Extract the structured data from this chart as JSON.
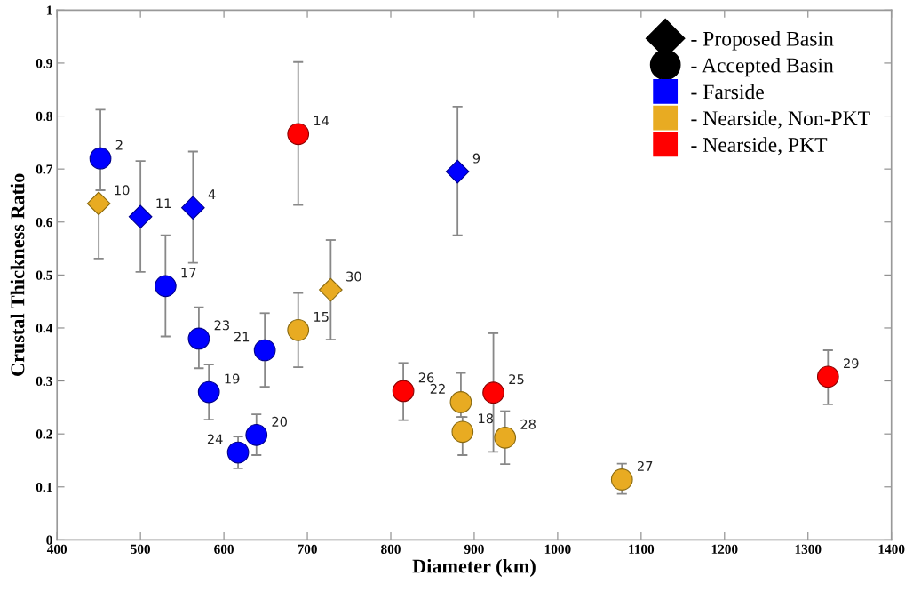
{
  "chart_data": {
    "type": "scatter",
    "xlabel": "Diameter (km)",
    "ylabel": "Crustal Thickness Ratio",
    "xlim": [
      400,
      1400
    ],
    "xticks": [
      400,
      500,
      600,
      700,
      800,
      900,
      1000,
      1100,
      1200,
      1300,
      1400
    ],
    "ylim": [
      0,
      1
    ],
    "yticks": [
      0,
      0.1,
      0.2,
      0.3,
      0.4,
      0.5,
      0.6,
      0.7,
      0.8,
      0.9,
      1
    ],
    "grid": false,
    "legend": "top right",
    "series": [
      {
        "name": "- Proposed Basin",
        "color": "#000000",
        "marker": "diamond"
      },
      {
        "name": "- Accepted Basin",
        "color": "#000000",
        "marker": "circle"
      },
      {
        "name": "- Farside",
        "color": "#0000ff",
        "marker": "circle",
        "x": [
          452,
          530,
          570,
          582,
          617,
          639,
          649
        ],
        "values": [
          0.72,
          0.479,
          0.38,
          0.279,
          0.165,
          0.198,
          0.358
        ],
        "errors": [
          [
            0.66,
            0.812
          ],
          [
            0.384,
            0.575
          ],
          [
            0.324,
            0.439
          ],
          [
            0.227,
            0.331
          ],
          [
            0.135,
            0.195
          ],
          [
            0.16,
            0.237
          ],
          [
            0.289,
            0.428
          ]
        ]
      },
      {
        "name": "- Nearside, Non-PKT",
        "color": "#e8ab22",
        "marker": "circle",
        "x": [
          689,
          884,
          886,
          937,
          1077
        ],
        "values": [
          0.396,
          0.26,
          0.204,
          0.193,
          0.114
        ],
        "errors": [
          [
            0.326,
            0.466
          ],
          [
            0.232,
            0.315
          ],
          [
            0.16,
            0.232
          ],
          [
            0.143,
            0.243
          ],
          [
            0.087,
            0.144
          ]
        ]
      },
      {
        "name": "- Nearside, PKT",
        "color": "#ff0000",
        "marker": "circle",
        "x": [
          689,
          815,
          923,
          1324
        ],
        "values": [
          0.766,
          0.281,
          0.278,
          0.308
        ],
        "errors": [
          [
            0.632,
            0.902
          ],
          [
            0.226,
            0.334
          ],
          [
            0.166,
            0.39
          ],
          [
            0.256,
            0.358
          ]
        ]
      },
      {
        "color": "#0000ff",
        "marker": "diamond",
        "x": [
          500,
          563,
          880
        ],
        "values": [
          0.61,
          0.627,
          0.695
        ],
        "errors": [
          [
            0.506,
            0.715
          ],
          [
            0.523,
            0.733
          ],
          [
            0.575,
            0.818
          ]
        ]
      },
      {
        "color": "#e8ab22",
        "marker": "diamond",
        "x": [
          450,
          728
        ],
        "values": [
          0.635,
          0.472
        ],
        "errors": [
          [
            0.531,
            0.635
          ],
          [
            0.378,
            0.566
          ]
        ]
      }
    ],
    "annotations": [
      {
        "text": "2",
        "x": 452,
        "y": 0.72
      },
      {
        "text": "17",
        "x": 530,
        "y": 0.479
      },
      {
        "text": "23",
        "x": 570,
        "y": 0.38
      },
      {
        "text": "19",
        "x": 582,
        "y": 0.279
      },
      {
        "text": "24",
        "x": 617,
        "y": 0.165
      },
      {
        "text": "20",
        "x": 639,
        "y": 0.198
      },
      {
        "text": "21",
        "x": 649,
        "y": 0.358
      },
      {
        "text": "15",
        "x": 689,
        "y": 0.396
      },
      {
        "text": "22",
        "x": 884,
        "y": 0.26
      },
      {
        "text": "18",
        "x": 886,
        "y": 0.204
      },
      {
        "text": "28",
        "x": 937,
        "y": 0.193
      },
      {
        "text": "27",
        "x": 1077,
        "y": 0.114
      },
      {
        "text": "14",
        "x": 689,
        "y": 0.766
      },
      {
        "text": "26",
        "x": 815,
        "y": 0.281
      },
      {
        "text": "25",
        "x": 923,
        "y": 0.278
      },
      {
        "text": "29",
        "x": 1324,
        "y": 0.308
      },
      {
        "text": "11",
        "x": 500,
        "y": 0.61
      },
      {
        "text": "4",
        "x": 563,
        "y": 0.627
      },
      {
        "text": "9",
        "x": 880,
        "y": 0.695
      },
      {
        "text": "10",
        "x": 450,
        "y": 0.635
      },
      {
        "text": "30",
        "x": 728,
        "y": 0.472
      }
    ]
  }
}
